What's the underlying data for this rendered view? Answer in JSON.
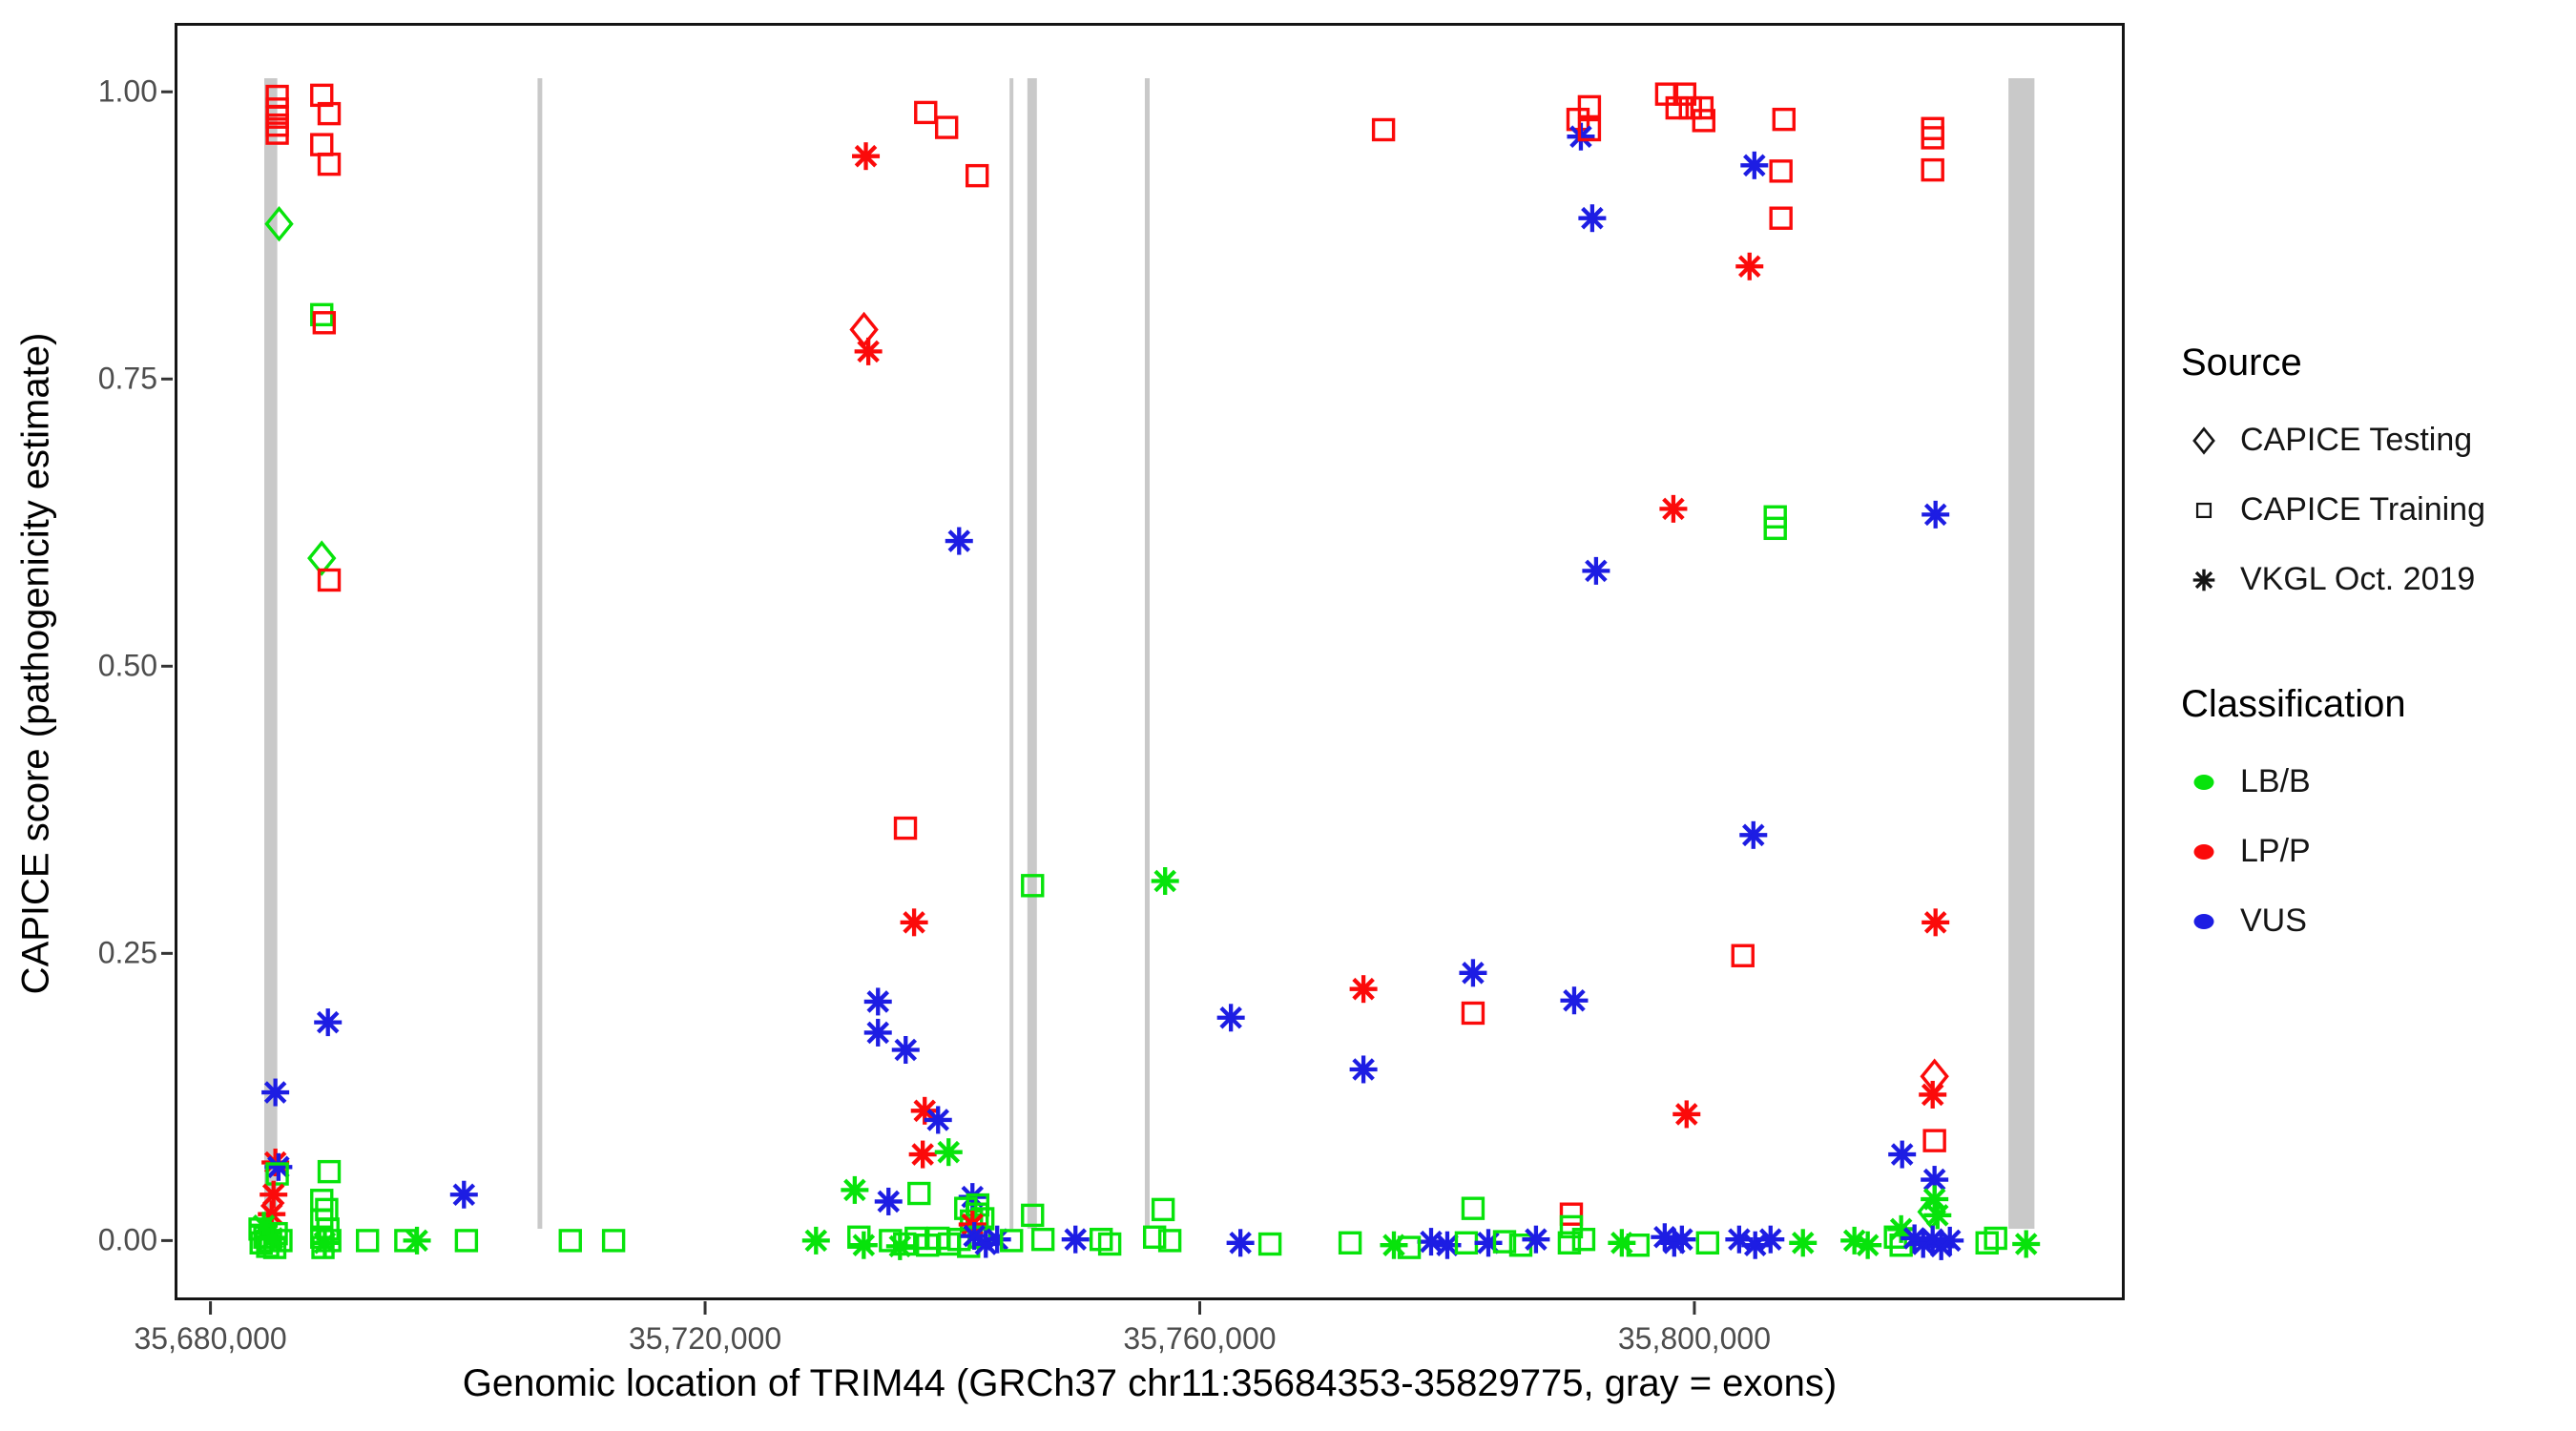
{
  "legend": {
    "source": {
      "title": "Source",
      "items": [
        {
          "label": "CAPICE Testing",
          "marker": "diamond"
        },
        {
          "label": "CAPICE Training",
          "marker": "square"
        },
        {
          "label": "VKGL Oct. 2019",
          "marker": "asterisk"
        }
      ]
    },
    "classification": {
      "title": "Classification",
      "items": [
        {
          "label": "LB/B",
          "key": "lb",
          "color": "#07E30B"
        },
        {
          "label": "LP/P",
          "key": "lp",
          "color": "#FB0A0A"
        },
        {
          "label": "VUS",
          "key": "vus",
          "color": "#1D1DE3"
        }
      ]
    }
  },
  "chart_data": {
    "type": "scatter",
    "title": "",
    "xlabel": "Genomic location of TRIM44 (GRCh37 chr11:35684353-35829775, gray = exons)",
    "ylabel": "CAPICE score (pathogenicity estimate)",
    "xlim": [
      35677100,
      35834800
    ],
    "ylim": [
      -0.052,
      1.06
    ],
    "grid": "off",
    "legend_position": "right",
    "x_ticks": [
      {
        "value": 35680000,
        "label": "35,680,000"
      },
      {
        "value": 35720000,
        "label": "35,720,000"
      },
      {
        "value": 35760000,
        "label": "35,760,000"
      },
      {
        "value": 35800000,
        "label": "35,800,000"
      }
    ],
    "y_ticks": [
      {
        "value": 0.0,
        "label": "0.00"
      },
      {
        "value": 0.25,
        "label": "0.25"
      },
      {
        "value": 0.5,
        "label": "0.50"
      },
      {
        "value": 0.75,
        "label": "0.75"
      },
      {
        "value": 1.0,
        "label": "1.00"
      }
    ],
    "colors": {
      "lb": "#07E30B",
      "lp": "#FB0A0A",
      "vus": "#1D1DE3",
      "exon": "#C9C9C9"
    },
    "marker_meaning": {
      "d": "CAPICE Testing (diamond)",
      "s": "CAPICE Training (square)",
      "a": "VKGL Oct. 2019 (asterisk)"
    },
    "exons_bp": [
      [
        35684353,
        35685405
      ],
      [
        35706450,
        35706830
      ],
      [
        35744620,
        35744930
      ],
      [
        35746060,
        35746830
      ],
      [
        35755560,
        35755950
      ],
      [
        35825400,
        35827500
      ]
    ],
    "points": [
      [
        35685400,
        0.996,
        "s",
        "lp"
      ],
      [
        35685400,
        0.985,
        "s",
        "lp"
      ],
      [
        35685400,
        0.978,
        "s",
        "lp"
      ],
      [
        35685400,
        0.971,
        "s",
        "lp"
      ],
      [
        35685400,
        0.964,
        "s",
        "lp"
      ],
      [
        35689000,
        0.997,
        "s",
        "lp"
      ],
      [
        35689600,
        0.981,
        "s",
        "lp"
      ],
      [
        35689000,
        0.954,
        "s",
        "lp"
      ],
      [
        35689600,
        0.937,
        "s",
        "lp"
      ],
      [
        35685550,
        0.885,
        "d",
        "lb"
      ],
      [
        35689000,
        0.806,
        "s",
        "lb"
      ],
      [
        35689200,
        0.799,
        "s",
        "lp"
      ],
      [
        35689000,
        0.594,
        "d",
        "lb"
      ],
      [
        35689600,
        0.575,
        "s",
        "lp"
      ],
      [
        35689500,
        0.19,
        "a",
        "vus"
      ],
      [
        35685250,
        0.129,
        "a",
        "vus"
      ],
      [
        35685250,
        0.068,
        "a",
        "lp"
      ],
      [
        35685500,
        0.064,
        "a",
        "vus"
      ],
      [
        35685400,
        0.058,
        "s",
        "lb"
      ],
      [
        35685100,
        0.04,
        "a",
        "lp"
      ],
      [
        35684950,
        0.023,
        "a",
        "lp"
      ],
      [
        35684010,
        0.01,
        "s",
        "lb"
      ],
      [
        35684400,
        0.003,
        "s",
        "lb"
      ],
      [
        35684860,
        0.0,
        "s",
        "lb"
      ],
      [
        35685320,
        0.006,
        "s",
        "lb"
      ],
      [
        35685700,
        0.0,
        "s",
        "lb"
      ],
      [
        35684630,
        -0.005,
        "s",
        "lb"
      ],
      [
        35684100,
        -0.002,
        "s",
        "lb"
      ],
      [
        35685200,
        -0.006,
        "s",
        "lb"
      ],
      [
        35684320,
        0.013,
        "a",
        "lb"
      ],
      [
        35685000,
        0.002,
        "a",
        "lb"
      ],
      [
        35689600,
        0.06,
        "s",
        "lb"
      ],
      [
        35689000,
        0.035,
        "s",
        "lb"
      ],
      [
        35689400,
        0.027,
        "s",
        "lb"
      ],
      [
        35689000,
        0.018,
        "s",
        "lb"
      ],
      [
        35689500,
        0.01,
        "s",
        "lb"
      ],
      [
        35689000,
        0.003,
        "s",
        "lb"
      ],
      [
        35689650,
        0.0,
        "s",
        "lb"
      ],
      [
        35689100,
        -0.006,
        "s",
        "lb"
      ],
      [
        35689250,
        -0.002,
        "a",
        "lb"
      ],
      [
        35692700,
        0.0,
        "s",
        "lb"
      ],
      [
        35695800,
        0.0,
        "s",
        "lb"
      ],
      [
        35696700,
        0.0,
        "a",
        "lb"
      ],
      [
        35700500,
        0.04,
        "a",
        "vus"
      ],
      [
        35700700,
        0.0,
        "s",
        "lb"
      ],
      [
        35709100,
        0.0,
        "s",
        "lb"
      ],
      [
        35712600,
        0.0,
        "s",
        "lb"
      ],
      [
        35733000,
        0.944,
        "a",
        "lp"
      ],
      [
        35737840,
        0.982,
        "s",
        "lp"
      ],
      [
        35739530,
        0.969,
        "s",
        "lp"
      ],
      [
        35742000,
        0.927,
        "s",
        "lp"
      ],
      [
        35774860,
        0.967,
        "s",
        "lp"
      ],
      [
        35732850,
        0.793,
        "d",
        "lp"
      ],
      [
        35733200,
        0.774,
        "a",
        "lp"
      ],
      [
        35740540,
        0.609,
        "a",
        "vus"
      ],
      [
        35736200,
        0.359,
        "s",
        "lp"
      ],
      [
        35736900,
        0.277,
        "a",
        "lp"
      ],
      [
        35746480,
        0.309,
        "s",
        "lb"
      ],
      [
        35757200,
        0.313,
        "a",
        "lb"
      ],
      [
        35733980,
        0.208,
        "a",
        "vus"
      ],
      [
        35733980,
        0.181,
        "a",
        "vus"
      ],
      [
        35736220,
        0.166,
        "a",
        "vus"
      ],
      [
        35737760,
        0.113,
        "a",
        "lp"
      ],
      [
        35738840,
        0.105,
        "a",
        "vus"
      ],
      [
        35737600,
        0.075,
        "a",
        "lp"
      ],
      [
        35739690,
        0.077,
        "a",
        "lb"
      ],
      [
        35732100,
        0.044,
        "a",
        "lb"
      ],
      [
        35734830,
        0.034,
        "a",
        "vus"
      ],
      [
        35737300,
        0.041,
        "s",
        "lb"
      ],
      [
        35741620,
        0.038,
        "a",
        "vus"
      ],
      [
        35741080,
        0.028,
        "s",
        "lb"
      ],
      [
        35742000,
        0.023,
        "s",
        "lb"
      ],
      [
        35741540,
        0.017,
        "s",
        "lb"
      ],
      [
        35742460,
        0.019,
        "s",
        "lb"
      ],
      [
        35742050,
        0.031,
        "s",
        "lb"
      ],
      [
        35741620,
        0.014,
        "a",
        "lp"
      ],
      [
        35728970,
        0.0,
        "a",
        "lb"
      ],
      [
        35732440,
        0.003,
        "s",
        "lb"
      ],
      [
        35734990,
        0.0,
        "s",
        "lb"
      ],
      [
        35736140,
        -0.003,
        "s",
        "lb"
      ],
      [
        35737070,
        0.002,
        "s",
        "lb"
      ],
      [
        35737990,
        -0.004,
        "s",
        "lb"
      ],
      [
        35738840,
        0.002,
        "s",
        "lb"
      ],
      [
        35739760,
        -0.003,
        "s",
        "lb"
      ],
      [
        35740540,
        0.001,
        "s",
        "lb"
      ],
      [
        35741310,
        -0.005,
        "s",
        "lb"
      ],
      [
        35742230,
        0.003,
        "s",
        "lb"
      ],
      [
        35732830,
        -0.004,
        "a",
        "lb"
      ],
      [
        35735760,
        -0.005,
        "a",
        "lb"
      ],
      [
        35741770,
        0.004,
        "a",
        "vus"
      ],
      [
        35742700,
        -0.003,
        "a",
        "vus"
      ],
      [
        35743620,
        0.001,
        "a",
        "vus"
      ],
      [
        35744780,
        0.0,
        "s",
        "lb"
      ],
      [
        35747320,
        0.001,
        "s",
        "lb"
      ],
      [
        35749950,
        0.001,
        "a",
        "vus"
      ],
      [
        35752030,
        0.001,
        "s",
        "lb"
      ],
      [
        35752720,
        -0.003,
        "s",
        "lb"
      ],
      [
        35756350,
        0.003,
        "s",
        "lb"
      ],
      [
        35757580,
        0.0,
        "s",
        "lb"
      ],
      [
        35746480,
        0.022,
        "s",
        "lb"
      ],
      [
        35757040,
        0.027,
        "s",
        "lb"
      ],
      [
        35762520,
        0.194,
        "a",
        "vus"
      ],
      [
        35763290,
        -0.002,
        "a",
        "vus"
      ],
      [
        35782100,
        0.233,
        "a",
        "vus"
      ],
      [
        35773240,
        0.219,
        "a",
        "lp"
      ],
      [
        35782100,
        0.198,
        "s",
        "lp"
      ],
      [
        35790280,
        0.209,
        "a",
        "vus"
      ],
      [
        35773240,
        0.149,
        "a",
        "vus"
      ],
      [
        35799370,
        0.11,
        "a",
        "lp"
      ],
      [
        35782100,
        0.028,
        "s",
        "lb"
      ],
      [
        35790050,
        0.023,
        "s",
        "lp"
      ],
      [
        35790050,
        0.012,
        "s",
        "lb"
      ],
      [
        35798300,
        0.637,
        "a",
        "lp"
      ],
      [
        35806540,
        0.63,
        "s",
        "lb"
      ],
      [
        35806540,
        0.62,
        "s",
        "lb"
      ],
      [
        35819500,
        0.632,
        "a",
        "vus"
      ],
      [
        35792050,
        0.583,
        "a",
        "vus"
      ],
      [
        35804770,
        0.353,
        "a",
        "vus"
      ],
      [
        35819500,
        0.277,
        "a",
        "lp"
      ],
      [
        35803920,
        0.248,
        "s",
        "lp"
      ],
      [
        35791510,
        0.987,
        "s",
        "lp"
      ],
      [
        35790590,
        0.976,
        "s",
        "lp"
      ],
      [
        35790820,
        0.961,
        "a",
        "vus"
      ],
      [
        35791510,
        0.967,
        "s",
        "lp"
      ],
      [
        35797760,
        0.998,
        "s",
        "lp"
      ],
      [
        35799220,
        0.998,
        "s",
        "lp"
      ],
      [
        35798600,
        0.986,
        "s",
        "lp"
      ],
      [
        35799680,
        0.986,
        "s",
        "lp"
      ],
      [
        35800610,
        0.986,
        "s",
        "lp"
      ],
      [
        35800760,
        0.975,
        "s",
        "lp"
      ],
      [
        35807240,
        0.976,
        "s",
        "lp"
      ],
      [
        35804850,
        0.936,
        "a",
        "vus"
      ],
      [
        35807000,
        0.931,
        "s",
        "lp"
      ],
      [
        35807000,
        0.89,
        "s",
        "lp"
      ],
      [
        35804460,
        0.848,
        "a",
        "lp"
      ],
      [
        35791740,
        0.89,
        "a",
        "vus"
      ],
      [
        35819270,
        0.968,
        "s",
        "lp"
      ],
      [
        35819270,
        0.96,
        "s",
        "lp"
      ],
      [
        35819270,
        0.932,
        "s",
        "lp"
      ],
      [
        35819420,
        0.143,
        "d",
        "lp"
      ],
      [
        35819270,
        0.127,
        "a",
        "lp"
      ],
      [
        35819420,
        0.087,
        "s",
        "lp"
      ],
      [
        35816800,
        0.075,
        "a",
        "vus"
      ],
      [
        35819420,
        0.053,
        "a",
        "vus"
      ],
      [
        35819420,
        0.036,
        "a",
        "lb"
      ],
      [
        35819190,
        0.025,
        "d",
        "lb"
      ],
      [
        35819660,
        0.022,
        "a",
        "lb"
      ],
      [
        35816720,
        0.01,
        "a",
        "lb"
      ],
      [
        35816260,
        0.003,
        "s",
        "lb"
      ],
      [
        35816720,
        -0.004,
        "s",
        "lb"
      ],
      [
        35817800,
        0.002,
        "a",
        "vus"
      ],
      [
        35818500,
        -0.003,
        "a",
        "vus"
      ],
      [
        35819270,
        0.001,
        "a",
        "vus"
      ],
      [
        35819960,
        -0.005,
        "a",
        "vus"
      ],
      [
        35820660,
        0.0,
        "a",
        "vus"
      ],
      [
        35823670,
        -0.002,
        "s",
        "lb"
      ],
      [
        35824360,
        0.002,
        "s",
        "lb"
      ],
      [
        35826830,
        -0.003,
        "a",
        "lb"
      ],
      [
        35765680,
        -0.003,
        "s",
        "lb"
      ],
      [
        35772160,
        -0.002,
        "s",
        "lb"
      ],
      [
        35775700,
        -0.004,
        "a",
        "lb"
      ],
      [
        35778710,
        -0.001,
        "a",
        "vus"
      ],
      [
        35780020,
        -0.004,
        "a",
        "vus"
      ],
      [
        35776940,
        -0.006,
        "s",
        "lb"
      ],
      [
        35781560,
        -0.002,
        "s",
        "lb"
      ],
      [
        35783340,
        -0.002,
        "a",
        "vus"
      ],
      [
        35784650,
        -0.001,
        "s",
        "lb"
      ],
      [
        35785960,
        -0.004,
        "s",
        "lb"
      ],
      [
        35787190,
        0.001,
        "a",
        "vus"
      ],
      [
        35789890,
        -0.002,
        "s",
        "lb"
      ],
      [
        35791050,
        0.001,
        "s",
        "lb"
      ],
      [
        35794130,
        -0.002,
        "a",
        "lb"
      ],
      [
        35795440,
        -0.004,
        "s",
        "lb"
      ],
      [
        35797600,
        0.003,
        "a",
        "vus"
      ],
      [
        35798370,
        -0.002,
        "a",
        "vus"
      ],
      [
        35798990,
        0.001,
        "a",
        "vus"
      ],
      [
        35801070,
        -0.002,
        "s",
        "lb"
      ],
      [
        35803620,
        0.001,
        "a",
        "vus"
      ],
      [
        35804920,
        -0.004,
        "a",
        "vus"
      ],
      [
        35806160,
        0.001,
        "a",
        "vus"
      ],
      [
        35808780,
        -0.002,
        "a",
        "lb"
      ],
      [
        35812940,
        0.0,
        "a",
        "lb"
      ],
      [
        35814020,
        -0.004,
        "a",
        "lb"
      ]
    ]
  }
}
